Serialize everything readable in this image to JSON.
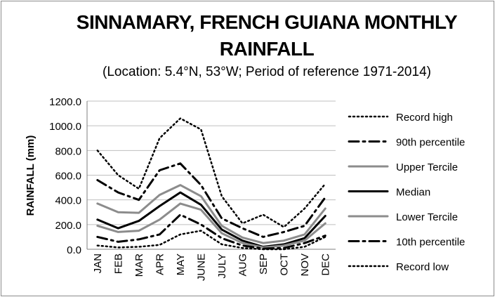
{
  "chart_data": {
    "type": "line",
    "title_line1": "SINNAMARY, FRENCH GUIANA MONTHLY",
    "title_line2": "RAINFALL",
    "subtitle": "(Location: 5.4°N, 53°W; Period of reference 1971-2014)",
    "ylabel": "RAINFALL (mm)",
    "xlabel": "",
    "ylim": [
      0,
      1200
    ],
    "yticks": [
      "0.0",
      "200.0",
      "400.0",
      "600.0",
      "800.0",
      "1000.0",
      "1200.0"
    ],
    "categories": [
      "JAN",
      "FEB",
      "MAR",
      "APR",
      "MAY",
      "JUNE",
      "JULY",
      "AUG",
      "SEP",
      "OCT",
      "NOV",
      "DEC"
    ],
    "legend_position": "right",
    "series": [
      {
        "name": "Record high",
        "style": "dotted",
        "color": "#000000",
        "values": [
          800,
          600,
          490,
          900,
          1060,
          970,
          430,
          210,
          280,
          180,
          330,
          530
        ]
      },
      {
        "name": "90th percentile",
        "style": "dashdot",
        "color": "#000000",
        "values": [
          560,
          460,
          400,
          640,
          695,
          520,
          250,
          170,
          100,
          140,
          190,
          420
        ]
      },
      {
        "name": "Upper Tercile",
        "style": "solid",
        "color": "#8c8c8c",
        "values": [
          370,
          300,
          295,
          440,
          520,
          430,
          190,
          95,
          50,
          70,
          120,
          330
        ]
      },
      {
        "name": "Median",
        "style": "solid",
        "color": "#000000",
        "values": [
          240,
          170,
          230,
          350,
          460,
          360,
          160,
          70,
          20,
          40,
          90,
          270
        ]
      },
      {
        "name": "Lower Tercile",
        "style": "solid",
        "color": "#8c8c8c",
        "values": [
          190,
          140,
          150,
          240,
          370,
          320,
          130,
          50,
          15,
          30,
          70,
          210
        ]
      },
      {
        "name": "10th percentile",
        "style": "dashdot",
        "color": "#000000",
        "values": [
          100,
          60,
          80,
          120,
          280,
          200,
          90,
          30,
          5,
          10,
          50,
          110
        ]
      },
      {
        "name": "Record low",
        "style": "dotted",
        "color": "#000000",
        "values": [
          30,
          15,
          20,
          35,
          120,
          150,
          40,
          10,
          0,
          0,
          20,
          100
        ]
      }
    ]
  }
}
